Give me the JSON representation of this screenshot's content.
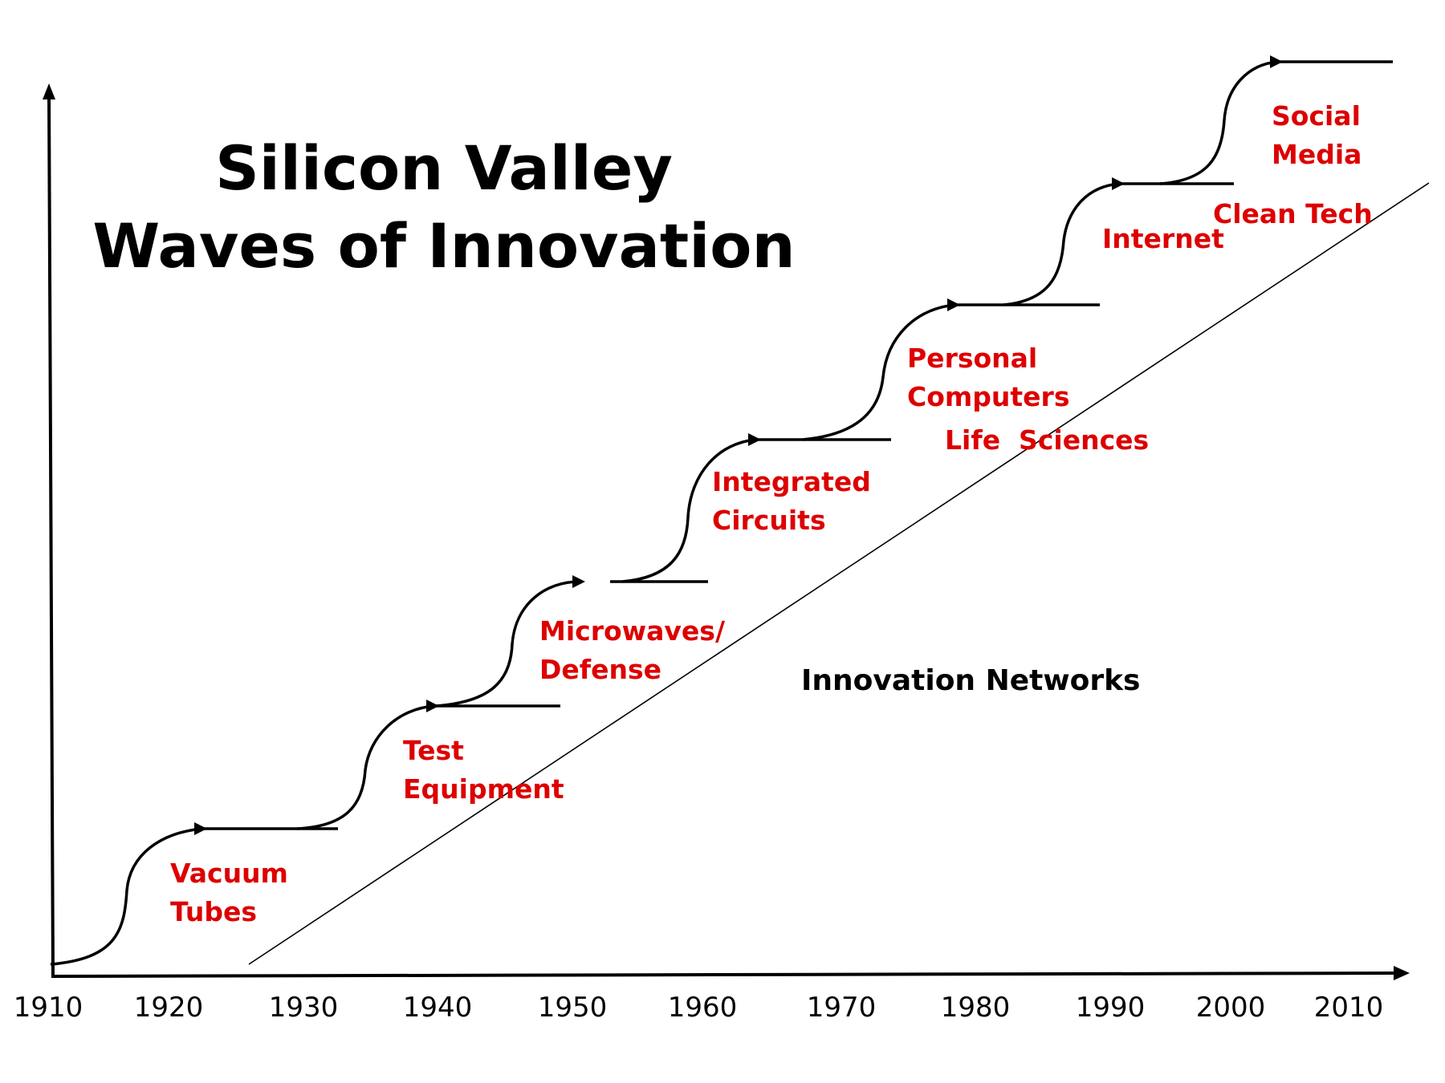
{
  "title": {
    "line1": "Silicon Valley",
    "line2": "Waves of Innovation"
  },
  "x_axis": {
    "ticks": [
      "1910",
      "1920",
      "1930",
      "1940",
      "1950",
      "1960",
      "1970",
      "1980",
      "1990",
      "2000",
      "2010"
    ]
  },
  "waves": [
    {
      "lines": [
        "Vacuum",
        "Tubes"
      ]
    },
    {
      "lines": [
        "Test",
        "Equipment"
      ]
    },
    {
      "lines": [
        "Microwaves/",
        "Defense"
      ]
    },
    {
      "lines": [
        "Integrated",
        "Circuits"
      ]
    },
    {
      "lines": [
        "Personal",
        "Computers"
      ]
    },
    {
      "lines": [
        "Life  Sciences"
      ]
    },
    {
      "lines": [
        "Internet"
      ]
    },
    {
      "lines": [
        "Clean Tech"
      ]
    },
    {
      "lines": [
        "Social",
        "Media"
      ]
    }
  ],
  "network_label": "Innovation Networks",
  "colors": {
    "wave_label": "#dd0000",
    "line": "#000000",
    "text": "#000000"
  }
}
